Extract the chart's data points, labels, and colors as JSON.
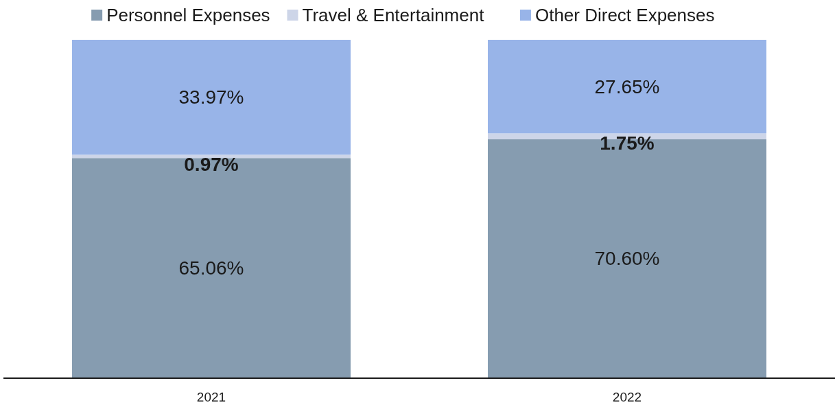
{
  "chart_data": {
    "type": "bar",
    "stacked": true,
    "categories": [
      "2021",
      "2022"
    ],
    "ylim": [
      0,
      100
    ],
    "legend": "top",
    "data_labels": true,
    "series": [
      {
        "name": "Personnel Expenses",
        "color": "#869cb0",
        "values": [
          65.06,
          70.6
        ],
        "value_labels": [
          "65.06%",
          "70.60%"
        ]
      },
      {
        "name": "Travel & Entertainment",
        "color": "#cdd5e8",
        "values": [
          0.97,
          1.75
        ],
        "value_labels": [
          "0.97%",
          "1.75%"
        ]
      },
      {
        "name": "Other Direct Expenses",
        "color": "#98b4e8",
        "values": [
          33.97,
          27.65
        ],
        "value_labels": [
          "33.97%",
          "27.65%"
        ]
      }
    ]
  }
}
